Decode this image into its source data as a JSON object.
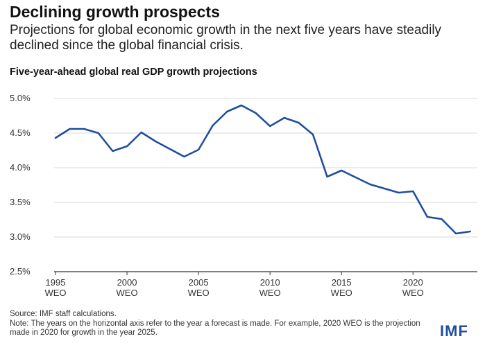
{
  "header": {
    "title": "Declining growth prospects",
    "subtitle": "Projections for global economic growth in the next five years have steadily declined since the global financial crisis."
  },
  "footer": {
    "source": "Source: IMF staff calculations.",
    "note": "Note: The years on the horizontal axis refer to the year a forecast is made. For example, 2020 WEO is the projection made in 2020 for growth in the year 2025.",
    "logo": "IMF"
  },
  "colors": {
    "line": "#1f4e9e",
    "grid": "#d9d9d9",
    "logo": "#1f4e9e"
  },
  "chart_data": {
    "type": "line",
    "title": "Five-year-ahead global real GDP growth projections",
    "xlabel": "",
    "ylabel": "",
    "xlim": [
      1995,
      2024.5
    ],
    "ylim": [
      2.5,
      5.0
    ],
    "x_ticks": [
      1995,
      2000,
      2005,
      2010,
      2015,
      2020
    ],
    "x_tick_labels": [
      {
        "year": "1995",
        "suffix": "WEO"
      },
      {
        "year": "2000",
        "suffix": "WEO"
      },
      {
        "year": "2005",
        "suffix": "WEO"
      },
      {
        "year": "2010",
        "suffix": "WEO"
      },
      {
        "year": "2015",
        "suffix": "WEO"
      },
      {
        "year": "2020",
        "suffix": "WEO"
      }
    ],
    "y_ticks": [
      2.5,
      3.0,
      3.5,
      4.0,
      4.5,
      5.0
    ],
    "y_tick_labels": [
      "2.5%",
      "3.0%",
      "3.5%",
      "4.0%",
      "4.5%",
      "5.0%"
    ],
    "grid": true,
    "x": [
      1995,
      1996,
      1997,
      1998,
      1999,
      2000,
      2001,
      2002,
      2003,
      2004,
      2005,
      2006,
      2007,
      2008,
      2009,
      2010,
      2011,
      2012,
      2013,
      2014,
      2015,
      2016,
      2017,
      2018,
      2019,
      2020,
      2021,
      2022,
      2023,
      2024
    ],
    "values": [
      4.43,
      4.56,
      4.56,
      4.5,
      4.24,
      4.31,
      4.51,
      4.38,
      4.27,
      4.16,
      4.26,
      4.61,
      4.81,
      4.9,
      4.79,
      4.6,
      4.72,
      4.65,
      4.48,
      3.87,
      3.96,
      3.86,
      3.76,
      3.7,
      3.64,
      3.66,
      3.29,
      3.26,
      3.05,
      3.08
    ]
  }
}
